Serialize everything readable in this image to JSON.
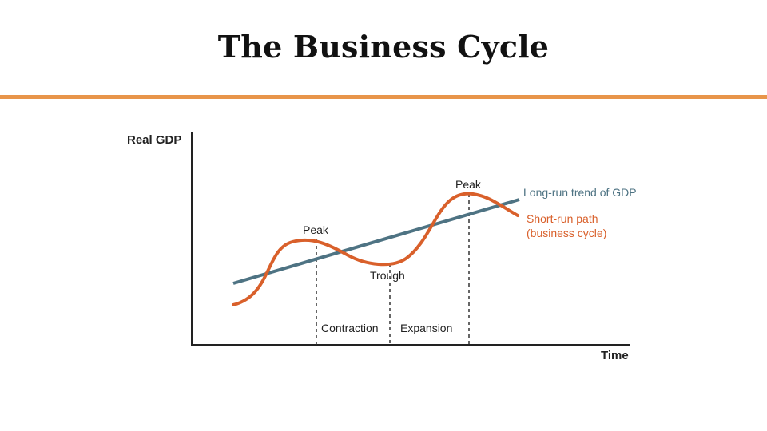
{
  "slide": {
    "title": "The Business Cycle",
    "rule_color": "#E8954A"
  },
  "diagram": {
    "y_axis_label": "Real GDP",
    "x_axis_label": "Time",
    "trend_label": "Long-run trend of GDP",
    "cycle_label_line1": "Short-run path",
    "cycle_label_line2": "(business cycle)",
    "peak1_label": "Peak",
    "peak2_label": "Peak",
    "trough_label": "Trough",
    "contraction_label": "Contraction",
    "expansion_label": "Expansion",
    "colors": {
      "trend": "#4E7383",
      "cycle": "#D9602B",
      "axis": "#222222",
      "marker": "#333333"
    }
  }
}
